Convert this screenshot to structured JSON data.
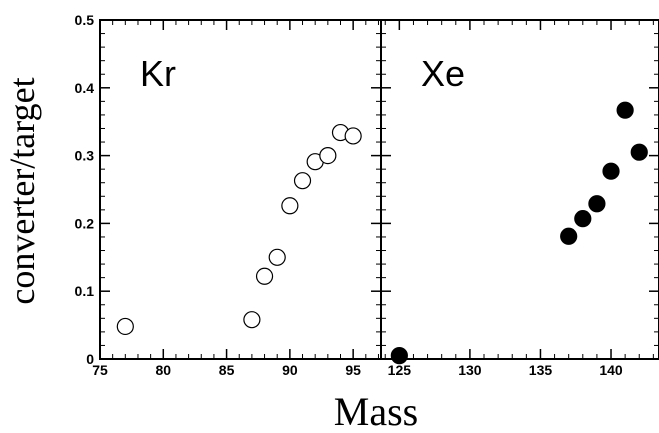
{
  "chart_data": [
    {
      "type": "scatter",
      "panel_label": "Kr",
      "marker": "open-circle",
      "xlim": [
        75,
        97.2
      ],
      "ylim": [
        0,
        0.5
      ],
      "x_ticks": [
        "75",
        "80",
        "85",
        "90",
        "95"
      ],
      "y_ticks": [
        "0",
        "0.1",
        "0.2",
        "0.3",
        "0.4",
        "0.5"
      ],
      "points": [
        {
          "x": 77,
          "y": 0.048
        },
        {
          "x": 87,
          "y": 0.058
        },
        {
          "x": 88,
          "y": 0.122
        },
        {
          "x": 89,
          "y": 0.15
        },
        {
          "x": 90,
          "y": 0.226
        },
        {
          "x": 91,
          "y": 0.263
        },
        {
          "x": 92,
          "y": 0.291
        },
        {
          "x": 93,
          "y": 0.3
        },
        {
          "x": 94,
          "y": 0.334
        },
        {
          "x": 95,
          "y": 0.329
        }
      ]
    },
    {
      "type": "scatter",
      "panel_label": "Xe",
      "marker": "filled-circle",
      "xlim": [
        123.7,
        143.4
      ],
      "ylim": [
        0,
        0.5
      ],
      "x_ticks": [
        "125",
        "130",
        "135",
        "140"
      ],
      "points": [
        {
          "x": 125,
          "y": 0.005
        },
        {
          "x": 137,
          "y": 0.181
        },
        {
          "x": 138,
          "y": 0.207
        },
        {
          "x": 139,
          "y": 0.229
        },
        {
          "x": 140,
          "y": 0.277
        },
        {
          "x": 141,
          "y": 0.367
        },
        {
          "x": 142,
          "y": 0.305
        }
      ]
    }
  ],
  "axes": {
    "ylabel": "converter/target",
    "xlabel": "Mass"
  },
  "colors": {
    "axis": "#000000",
    "marker_stroke": "#000000",
    "open_fill": "#ffffff",
    "filled_fill": "#000000"
  }
}
